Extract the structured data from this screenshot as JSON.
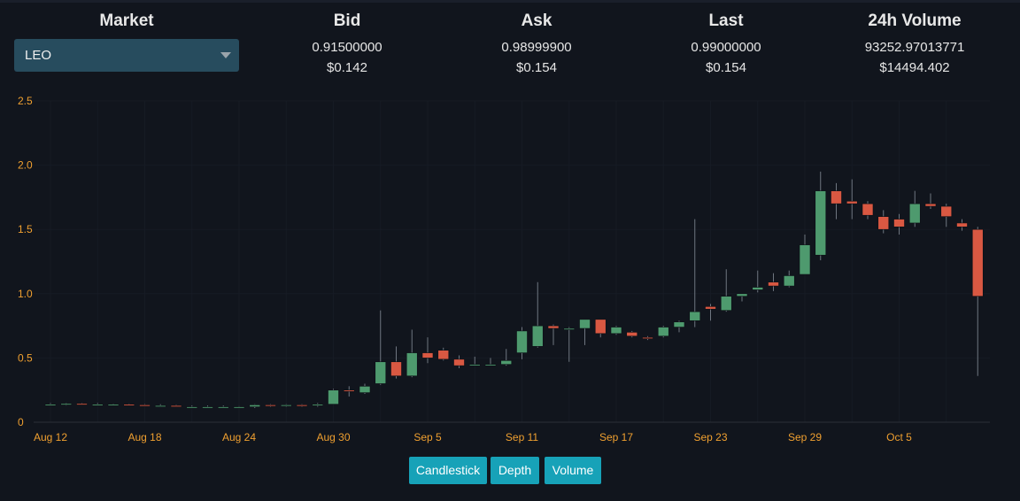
{
  "header": {
    "market_title": "Market",
    "market_selected": "LEO",
    "columns": [
      {
        "title": "Bid",
        "value": "0.91500000",
        "usd": "$0.142"
      },
      {
        "title": "Ask",
        "value": "0.98999900",
        "usd": "$0.154"
      },
      {
        "title": "Last",
        "value": "0.99000000",
        "usd": "$0.154"
      },
      {
        "title": "24h Volume",
        "value": "93252.97013771",
        "usd": "$14494.402"
      }
    ]
  },
  "colors": {
    "up": "#4e9a6e",
    "down": "#d95842",
    "axis_label": "#f0a030",
    "button": "#17a2b8"
  },
  "chart_data": {
    "type": "candlestick",
    "y_ticks": [
      "2.5",
      "2.0",
      "1.5",
      "1.0",
      "0.5",
      "0"
    ],
    "ylim": [
      0,
      2.5
    ],
    "x_tick_labels": [
      "Aug 12",
      "Aug 18",
      "Aug 24",
      "Aug 30",
      "Sep 5",
      "Sep 11",
      "Sep 17",
      "Sep 23",
      "Sep 29",
      "Oct 5"
    ],
    "x_start": "Aug 12",
    "grid": true,
    "candles": [
      {
        "date": "Aug 12",
        "o": 0.14,
        "h": 0.15,
        "l": 0.14,
        "c": 0.14
      },
      {
        "date": "Aug 13",
        "o": 0.14,
        "h": 0.15,
        "l": 0.13,
        "c": 0.145
      },
      {
        "date": "Aug 14",
        "o": 0.145,
        "h": 0.15,
        "l": 0.14,
        "c": 0.14
      },
      {
        "date": "Aug 15",
        "o": 0.14,
        "h": 0.15,
        "l": 0.13,
        "c": 0.14
      },
      {
        "date": "Aug 16",
        "o": 0.14,
        "h": 0.145,
        "l": 0.13,
        "c": 0.14
      },
      {
        "date": "Aug 17",
        "o": 0.14,
        "h": 0.145,
        "l": 0.13,
        "c": 0.135
      },
      {
        "date": "Aug 18",
        "o": 0.135,
        "h": 0.14,
        "l": 0.13,
        "c": 0.13
      },
      {
        "date": "Aug 19",
        "o": 0.13,
        "h": 0.14,
        "l": 0.12,
        "c": 0.13
      },
      {
        "date": "Aug 20",
        "o": 0.13,
        "h": 0.135,
        "l": 0.12,
        "c": 0.12
      },
      {
        "date": "Aug 21",
        "o": 0.12,
        "h": 0.13,
        "l": 0.115,
        "c": 0.12
      },
      {
        "date": "Aug 22",
        "o": 0.12,
        "h": 0.13,
        "l": 0.11,
        "c": 0.12
      },
      {
        "date": "Aug 23",
        "o": 0.12,
        "h": 0.13,
        "l": 0.11,
        "c": 0.12
      },
      {
        "date": "Aug 24",
        "o": 0.12,
        "h": 0.125,
        "l": 0.11,
        "c": 0.12
      },
      {
        "date": "Aug 25",
        "o": 0.12,
        "h": 0.14,
        "l": 0.11,
        "c": 0.135
      },
      {
        "date": "Aug 26",
        "o": 0.135,
        "h": 0.14,
        "l": 0.12,
        "c": 0.13
      },
      {
        "date": "Aug 27",
        "o": 0.13,
        "h": 0.14,
        "l": 0.12,
        "c": 0.135
      },
      {
        "date": "Aug 28",
        "o": 0.135,
        "h": 0.14,
        "l": 0.12,
        "c": 0.13
      },
      {
        "date": "Aug 29",
        "o": 0.13,
        "h": 0.15,
        "l": 0.12,
        "c": 0.14
      },
      {
        "date": "Aug 30",
        "o": 0.14,
        "h": 0.26,
        "l": 0.14,
        "c": 0.25
      },
      {
        "date": "Aug 31",
        "o": 0.25,
        "h": 0.28,
        "l": 0.2,
        "c": 0.24
      },
      {
        "date": "Sep 1",
        "o": 0.23,
        "h": 0.3,
        "l": 0.22,
        "c": 0.28
      },
      {
        "date": "Sep 2",
        "o": 0.3,
        "h": 0.87,
        "l": 0.29,
        "c": 0.47
      },
      {
        "date": "Sep 3",
        "o": 0.47,
        "h": 0.59,
        "l": 0.34,
        "c": 0.36
      },
      {
        "date": "Sep 4",
        "o": 0.36,
        "h": 0.72,
        "l": 0.35,
        "c": 0.54
      },
      {
        "date": "Sep 5",
        "o": 0.54,
        "h": 0.66,
        "l": 0.46,
        "c": 0.5
      },
      {
        "date": "Sep 6",
        "o": 0.56,
        "h": 0.58,
        "l": 0.48,
        "c": 0.49
      },
      {
        "date": "Sep 7",
        "o": 0.49,
        "h": 0.52,
        "l": 0.42,
        "c": 0.44
      },
      {
        "date": "Sep 8",
        "o": 0.45,
        "h": 0.51,
        "l": 0.44,
        "c": 0.45
      },
      {
        "date": "Sep 9",
        "o": 0.45,
        "h": 0.5,
        "l": 0.44,
        "c": 0.45
      },
      {
        "date": "Sep 10",
        "o": 0.45,
        "h": 0.57,
        "l": 0.44,
        "c": 0.48
      },
      {
        "date": "Sep 11",
        "o": 0.54,
        "h": 0.74,
        "l": 0.49,
        "c": 0.71
      },
      {
        "date": "Sep 12",
        "o": 0.59,
        "h": 1.09,
        "l": 0.58,
        "c": 0.75
      },
      {
        "date": "Sep 13",
        "o": 0.75,
        "h": 0.76,
        "l": 0.6,
        "c": 0.73
      },
      {
        "date": "Sep 14",
        "o": 0.73,
        "h": 0.74,
        "l": 0.47,
        "c": 0.73
      },
      {
        "date": "Sep 15",
        "o": 0.73,
        "h": 0.8,
        "l": 0.6,
        "c": 0.8
      },
      {
        "date": "Sep 16",
        "o": 0.8,
        "h": 0.8,
        "l": 0.66,
        "c": 0.69
      },
      {
        "date": "Sep 17",
        "o": 0.69,
        "h": 0.75,
        "l": 0.68,
        "c": 0.74
      },
      {
        "date": "Sep 18",
        "o": 0.7,
        "h": 0.71,
        "l": 0.66,
        "c": 0.67
      },
      {
        "date": "Sep 19",
        "o": 0.66,
        "h": 0.67,
        "l": 0.64,
        "c": 0.65
      },
      {
        "date": "Sep 20",
        "o": 0.67,
        "h": 0.75,
        "l": 0.66,
        "c": 0.74
      },
      {
        "date": "Sep 21",
        "o": 0.74,
        "h": 0.79,
        "l": 0.7,
        "c": 0.78
      },
      {
        "date": "Sep 22",
        "o": 0.79,
        "h": 1.58,
        "l": 0.74,
        "c": 0.86
      },
      {
        "date": "Sep 23",
        "o": 0.9,
        "h": 0.92,
        "l": 0.79,
        "c": 0.88
      },
      {
        "date": "Sep 24",
        "o": 0.87,
        "h": 1.19,
        "l": 0.86,
        "c": 0.98
      },
      {
        "date": "Sep 25",
        "o": 0.98,
        "h": 1.0,
        "l": 0.94,
        "c": 1.0
      },
      {
        "date": "Sep 26",
        "o": 1.03,
        "h": 1.18,
        "l": 1.01,
        "c": 1.05
      },
      {
        "date": "Sep 27",
        "o": 1.09,
        "h": 1.16,
        "l": 1.02,
        "c": 1.06
      },
      {
        "date": "Sep 28",
        "o": 1.06,
        "h": 1.18,
        "l": 1.05,
        "c": 1.14
      },
      {
        "date": "Sep 29",
        "o": 1.15,
        "h": 1.46,
        "l": 1.15,
        "c": 1.38
      },
      {
        "date": "Sep 30",
        "o": 1.3,
        "h": 1.95,
        "l": 1.26,
        "c": 1.8
      },
      {
        "date": "Oct 1",
        "o": 1.8,
        "h": 1.86,
        "l": 1.58,
        "c": 1.7
      },
      {
        "date": "Oct 2",
        "o": 1.72,
        "h": 1.89,
        "l": 1.58,
        "c": 1.7
      },
      {
        "date": "Oct 3",
        "o": 1.7,
        "h": 1.72,
        "l": 1.58,
        "c": 1.61
      },
      {
        "date": "Oct 4",
        "o": 1.6,
        "h": 1.65,
        "l": 1.47,
        "c": 1.5
      },
      {
        "date": "Oct 5",
        "o": 1.58,
        "h": 1.62,
        "l": 1.46,
        "c": 1.52
      },
      {
        "date": "Oct 6",
        "o": 1.55,
        "h": 1.8,
        "l": 1.52,
        "c": 1.7
      },
      {
        "date": "Oct 7",
        "o": 1.7,
        "h": 1.78,
        "l": 1.66,
        "c": 1.68
      },
      {
        "date": "Oct 8",
        "o": 1.68,
        "h": 1.7,
        "l": 1.52,
        "c": 1.6
      },
      {
        "date": "Oct 9",
        "o": 1.55,
        "h": 1.58,
        "l": 1.49,
        "c": 1.52
      },
      {
        "date": "Oct 10",
        "o": 1.5,
        "h": 1.52,
        "l": 0.36,
        "c": 0.98
      }
    ]
  },
  "buttons": [
    "Candlestick",
    "Depth",
    "Volume"
  ]
}
